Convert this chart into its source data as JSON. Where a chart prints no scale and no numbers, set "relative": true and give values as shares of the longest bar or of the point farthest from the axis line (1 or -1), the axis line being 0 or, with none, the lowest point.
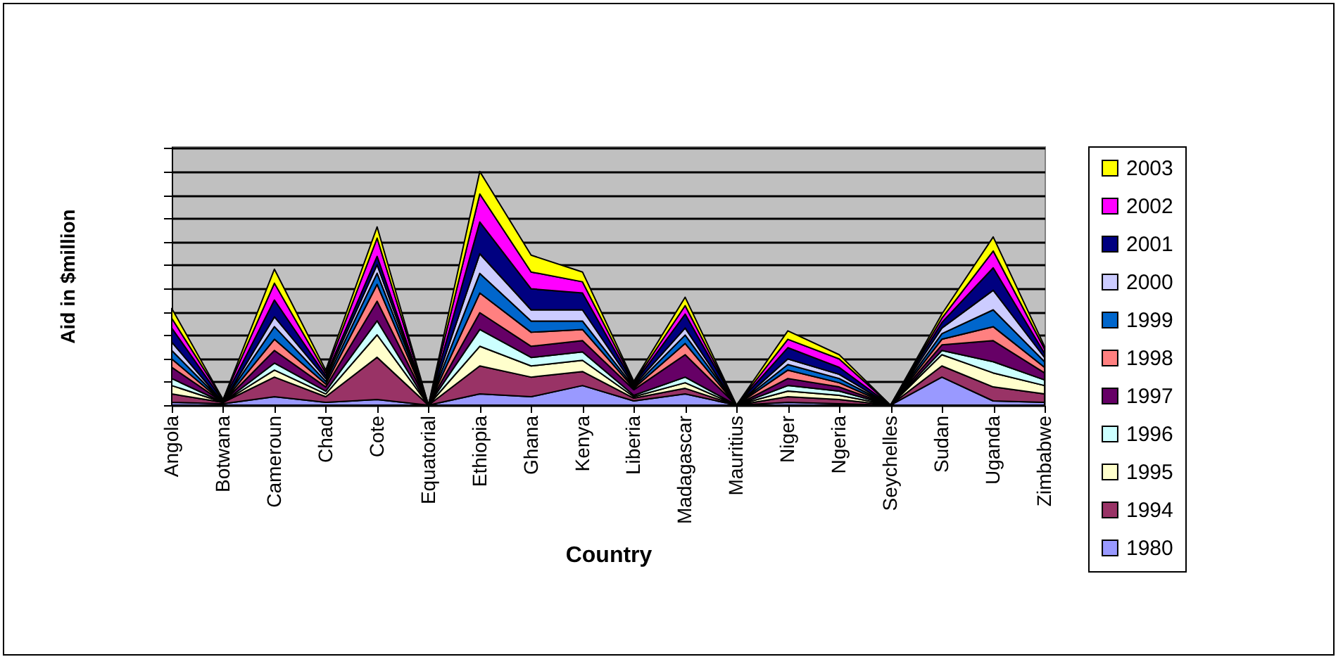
{
  "chart_data": {
    "type": "area",
    "stacked": true,
    "relative": true,
    "xlabel": "Country",
    "ylabel": "Aid in $million",
    "legend": "right",
    "grid": "y",
    "categories": [
      "Angola",
      "Botwana",
      "Cameroun",
      "Chad",
      "Cote",
      "Equatorial",
      "Ethiopia",
      "Ghana",
      "Kenya",
      "Liberia",
      "Madagascar",
      "Mauritius",
      "Niger",
      "Ngeria",
      "Seychelles",
      "Sudan",
      "Uganda",
      "Zimbabwe"
    ],
    "series": [
      {
        "name": "1980",
        "color": "#9999ff",
        "values": [
          0.012,
          0.006,
          0.036,
          0.012,
          0.024,
          0,
          0.048,
          0.036,
          0.084,
          0.018,
          0.048,
          0,
          0.012,
          0.006,
          0,
          0.12,
          0.018,
          0.012
        ]
      },
      {
        "name": "1994",
        "color": "#993366",
        "values": [
          0.036,
          0.006,
          0.084,
          0.024,
          0.181,
          0,
          0.12,
          0.084,
          0.06,
          0.012,
          0.024,
          0,
          0.024,
          0.018,
          0,
          0.048,
          0.06,
          0.036
        ]
      },
      {
        "name": "1995",
        "color": "#ffffcc",
        "values": [
          0.036,
          0,
          0.03,
          0.012,
          0.096,
          0,
          0.084,
          0.048,
          0.048,
          0.006,
          0.024,
          0,
          0.024,
          0.018,
          0,
          0.048,
          0.06,
          0.036
        ]
      },
      {
        "name": "1996",
        "color": "#ccffff",
        "values": [
          0.03,
          0,
          0.03,
          0.012,
          0.06,
          0,
          0.072,
          0.036,
          0.036,
          0.006,
          0.024,
          0,
          0.024,
          0.018,
          0,
          0.018,
          0.048,
          0.024
        ]
      },
      {
        "name": "1997",
        "color": "#660066",
        "values": [
          0.048,
          0,
          0.054,
          0.018,
          0.084,
          0,
          0.072,
          0.048,
          0.048,
          0.024,
          0.096,
          0,
          0.03,
          0.018,
          0,
          0.024,
          0.09,
          0.03
        ]
      },
      {
        "name": "1998",
        "color": "#ff8080",
        "values": [
          0.036,
          0,
          0.048,
          0.012,
          0.072,
          0,
          0.084,
          0.06,
          0.048,
          0.006,
          0.048,
          0,
          0.036,
          0.018,
          0,
          0.024,
          0.06,
          0.024
        ]
      },
      {
        "name": "1999",
        "color": "#0066cc",
        "values": [
          0.036,
          0,
          0.054,
          0.012,
          0.048,
          0,
          0.084,
          0.048,
          0.036,
          0.006,
          0.036,
          0,
          0.024,
          0.018,
          0,
          0.024,
          0.072,
          0.024
        ]
      },
      {
        "name": "2000",
        "color": "#ccccff",
        "values": [
          0.036,
          0,
          0.042,
          0.012,
          0.036,
          0,
          0.084,
          0.048,
          0.048,
          0.006,
          0.03,
          0,
          0.024,
          0.018,
          0,
          0.024,
          0.084,
          0.018
        ]
      },
      {
        "name": "2001",
        "color": "#000080",
        "values": [
          0.06,
          0.006,
          0.072,
          0.012,
          0.036,
          0,
          0.136,
          0.09,
          0.072,
          0.006,
          0.06,
          0,
          0.048,
          0.03,
          0,
          0.024,
          0.096,
          0.018
        ]
      },
      {
        "name": "2002",
        "color": "#ff00ff",
        "values": [
          0.042,
          0.006,
          0.072,
          0.012,
          0.078,
          0,
          0.12,
          0.072,
          0.048,
          0.006,
          0.036,
          0,
          0.036,
          0.036,
          0,
          0.018,
          0.072,
          0.018
        ]
      },
      {
        "name": "2003",
        "color": "#ffff00",
        "values": [
          0.042,
          0,
          0.06,
          0.012,
          0.048,
          0,
          0.096,
          0.072,
          0.042,
          0.006,
          0.036,
          0,
          0.036,
          0.018,
          0,
          0.018,
          0.06,
          0.012
        ]
      }
    ]
  }
}
